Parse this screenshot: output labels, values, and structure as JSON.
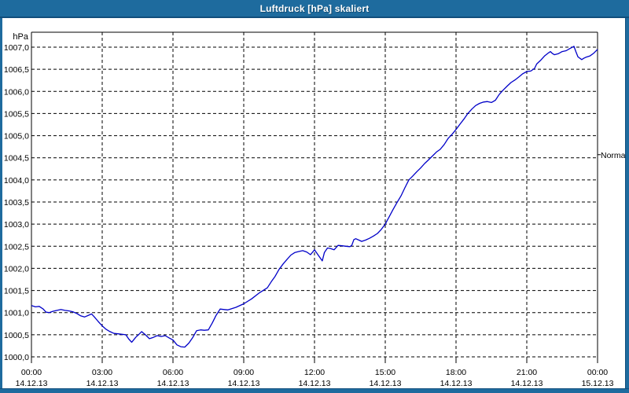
{
  "window": {
    "title": "Luftdruck [hPa] skaliert"
  },
  "colors": {
    "titlebar": "#1e6b9e",
    "titlebar_edge": "#114e7c",
    "frame": "#1e6b9e",
    "plot_background": "#ffffff",
    "grid": "#000000",
    "border": "#000000",
    "line": "#0000c8",
    "label": "#000000"
  },
  "chart_data": {
    "type": "line",
    "title": "Luftdruck [hPa] skaliert",
    "unit_label": "hPa",
    "right_label": "Normal",
    "normal_marker_value": 1004.57,
    "grid": "dashed",
    "legend_position": "none",
    "ylim": [
      1000.0,
      1007.0
    ],
    "ytick_step": 0.5,
    "yticks": [
      {
        "value": 1007.0,
        "label": "1007,0"
      },
      {
        "value": 1006.5,
        "label": "1006,5"
      },
      {
        "value": 1006.0,
        "label": "1006,0"
      },
      {
        "value": 1005.5,
        "label": "1005,5"
      },
      {
        "value": 1005.0,
        "label": "1005,0"
      },
      {
        "value": 1004.5,
        "label": "1004,5"
      },
      {
        "value": 1004.0,
        "label": "1004,0"
      },
      {
        "value": 1003.5,
        "label": "1003,5"
      },
      {
        "value": 1003.0,
        "label": "1003,0"
      },
      {
        "value": 1002.5,
        "label": "1002,5"
      },
      {
        "value": 1002.0,
        "label": "1002,0"
      },
      {
        "value": 1001.5,
        "label": "1001,5"
      },
      {
        "value": 1001.0,
        "label": "1001,0"
      },
      {
        "value": 1000.5,
        "label": "1000,5"
      },
      {
        "value": 1000.0,
        "label": "1000,0"
      }
    ],
    "x_hours_range": [
      0,
      24
    ],
    "xticks": [
      {
        "hour": 0,
        "time": "00:00",
        "date": "14.12.13"
      },
      {
        "hour": 3,
        "time": "03:00",
        "date": "14.12.13"
      },
      {
        "hour": 6,
        "time": "06:00",
        "date": "14.12.13"
      },
      {
        "hour": 9,
        "time": "09:00",
        "date": "14.12.13"
      },
      {
        "hour": 12,
        "time": "12:00",
        "date": "14.12.13"
      },
      {
        "hour": 15,
        "time": "15:00",
        "date": "14.12.13"
      },
      {
        "hour": 18,
        "time": "18:00",
        "date": "14.12.13"
      },
      {
        "hour": 21,
        "time": "21:00",
        "date": "14.12.13"
      },
      {
        "hour": 24,
        "time": "00:00",
        "date": "15.12.13"
      }
    ],
    "series": [
      {
        "name": "Luftdruck",
        "color": "#0000c8",
        "points": [
          [
            0.0,
            1001.16
          ],
          [
            0.17,
            1001.13
          ],
          [
            0.33,
            1001.14
          ],
          [
            0.5,
            1001.08
          ],
          [
            0.62,
            1001.01
          ],
          [
            0.75,
            1001.0
          ],
          [
            0.92,
            1001.03
          ],
          [
            1.08,
            1001.05
          ],
          [
            1.25,
            1001.07
          ],
          [
            1.42,
            1001.05
          ],
          [
            1.58,
            1001.04
          ],
          [
            1.75,
            1001.02
          ],
          [
            1.92,
            1000.98
          ],
          [
            2.08,
            1000.93
          ],
          [
            2.25,
            1000.9
          ],
          [
            2.42,
            1000.94
          ],
          [
            2.55,
            1000.97
          ],
          [
            2.67,
            1000.9
          ],
          [
            2.83,
            1000.8
          ],
          [
            3.0,
            1000.7
          ],
          [
            3.17,
            1000.62
          ],
          [
            3.33,
            1000.57
          ],
          [
            3.5,
            1000.53
          ],
          [
            3.67,
            1000.52
          ],
          [
            3.83,
            1000.51
          ],
          [
            4.0,
            1000.5
          ],
          [
            4.13,
            1000.4
          ],
          [
            4.25,
            1000.33
          ],
          [
            4.42,
            1000.44
          ],
          [
            4.58,
            1000.52
          ],
          [
            4.67,
            1000.57
          ],
          [
            4.83,
            1000.5
          ],
          [
            5.0,
            1000.41
          ],
          [
            5.17,
            1000.44
          ],
          [
            5.33,
            1000.48
          ],
          [
            5.5,
            1000.46
          ],
          [
            5.67,
            1000.48
          ],
          [
            5.83,
            1000.43
          ],
          [
            6.0,
            1000.38
          ],
          [
            6.17,
            1000.27
          ],
          [
            6.33,
            1000.23
          ],
          [
            6.5,
            1000.22
          ],
          [
            6.67,
            1000.31
          ],
          [
            6.83,
            1000.43
          ],
          [
            7.0,
            1000.59
          ],
          [
            7.17,
            1000.61
          ],
          [
            7.33,
            1000.6
          ],
          [
            7.5,
            1000.61
          ],
          [
            7.67,
            1000.77
          ],
          [
            7.83,
            1000.94
          ],
          [
            8.0,
            1001.08
          ],
          [
            8.17,
            1001.07
          ],
          [
            8.33,
            1001.06
          ],
          [
            8.5,
            1001.09
          ],
          [
            8.67,
            1001.12
          ],
          [
            9.0,
            1001.2
          ],
          [
            9.33,
            1001.31
          ],
          [
            9.67,
            1001.45
          ],
          [
            10.0,
            1001.56
          ],
          [
            10.17,
            1001.7
          ],
          [
            10.33,
            1001.82
          ],
          [
            10.5,
            1001.98
          ],
          [
            10.67,
            1002.1
          ],
          [
            10.83,
            1002.2
          ],
          [
            11.0,
            1002.3
          ],
          [
            11.17,
            1002.36
          ],
          [
            11.33,
            1002.38
          ],
          [
            11.5,
            1002.4
          ],
          [
            11.67,
            1002.37
          ],
          [
            11.83,
            1002.31
          ],
          [
            12.0,
            1002.42
          ],
          [
            12.08,
            1002.36
          ],
          [
            12.17,
            1002.29
          ],
          [
            12.33,
            1002.17
          ],
          [
            12.42,
            1002.36
          ],
          [
            12.55,
            1002.46
          ],
          [
            12.67,
            1002.45
          ],
          [
            12.83,
            1002.42
          ],
          [
            13.0,
            1002.52
          ],
          [
            13.17,
            1002.51
          ],
          [
            13.33,
            1002.5
          ],
          [
            13.5,
            1002.49
          ],
          [
            13.58,
            1002.52
          ],
          [
            13.67,
            1002.65
          ],
          [
            13.75,
            1002.67
          ],
          [
            13.92,
            1002.63
          ],
          [
            14.0,
            1002.61
          ],
          [
            14.17,
            1002.64
          ],
          [
            14.33,
            1002.68
          ],
          [
            14.5,
            1002.73
          ],
          [
            14.67,
            1002.79
          ],
          [
            14.83,
            1002.88
          ],
          [
            15.0,
            1003.0
          ],
          [
            15.17,
            1003.17
          ],
          [
            15.33,
            1003.33
          ],
          [
            15.5,
            1003.49
          ],
          [
            15.67,
            1003.64
          ],
          [
            15.83,
            1003.82
          ],
          [
            16.0,
            1004.0
          ],
          [
            16.17,
            1004.09
          ],
          [
            16.33,
            1004.18
          ],
          [
            16.5,
            1004.27
          ],
          [
            16.67,
            1004.37
          ],
          [
            16.83,
            1004.45
          ],
          [
            17.0,
            1004.54
          ],
          [
            17.17,
            1004.63
          ],
          [
            17.33,
            1004.69
          ],
          [
            17.5,
            1004.8
          ],
          [
            17.67,
            1004.94
          ],
          [
            17.83,
            1005.03
          ],
          [
            18.0,
            1005.14
          ],
          [
            18.17,
            1005.26
          ],
          [
            18.33,
            1005.37
          ],
          [
            18.5,
            1005.5
          ],
          [
            18.67,
            1005.6
          ],
          [
            18.83,
            1005.68
          ],
          [
            19.0,
            1005.73
          ],
          [
            19.17,
            1005.76
          ],
          [
            19.33,
            1005.77
          ],
          [
            19.5,
            1005.75
          ],
          [
            19.67,
            1005.8
          ],
          [
            19.83,
            1005.93
          ],
          [
            20.0,
            1006.03
          ],
          [
            20.17,
            1006.12
          ],
          [
            20.33,
            1006.2
          ],
          [
            20.5,
            1006.26
          ],
          [
            20.67,
            1006.33
          ],
          [
            20.83,
            1006.4
          ],
          [
            21.0,
            1006.45
          ],
          [
            21.17,
            1006.46
          ],
          [
            21.33,
            1006.52
          ],
          [
            21.42,
            1006.62
          ],
          [
            21.58,
            1006.7
          ],
          [
            21.75,
            1006.8
          ],
          [
            21.92,
            1006.87
          ],
          [
            22.0,
            1006.9
          ],
          [
            22.08,
            1006.86
          ],
          [
            22.17,
            1006.83
          ],
          [
            22.33,
            1006.85
          ],
          [
            22.5,
            1006.9
          ],
          [
            22.67,
            1006.92
          ],
          [
            22.83,
            1006.97
          ],
          [
            23.0,
            1007.02
          ],
          [
            23.08,
            1006.9
          ],
          [
            23.17,
            1006.78
          ],
          [
            23.33,
            1006.72
          ],
          [
            23.42,
            1006.75
          ],
          [
            23.5,
            1006.77
          ],
          [
            23.67,
            1006.8
          ],
          [
            23.83,
            1006.86
          ],
          [
            24.0,
            1006.95
          ]
        ]
      }
    ]
  }
}
